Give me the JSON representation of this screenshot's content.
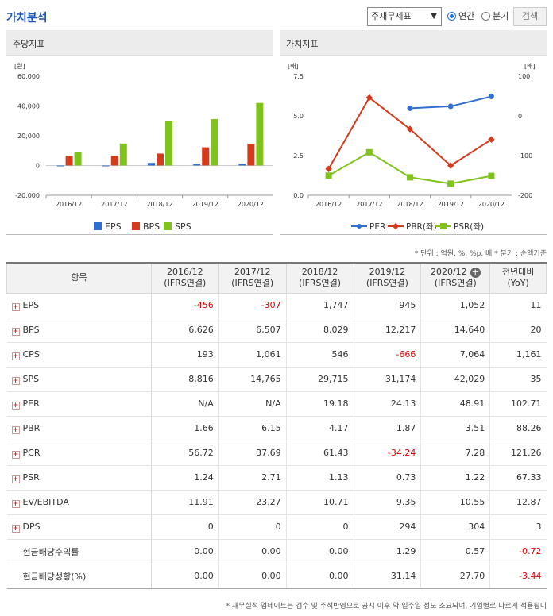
{
  "header": {
    "title": "가치분석",
    "report_type": "주재무제표",
    "period_options": [
      "연간",
      "분기"
    ],
    "selected_period": "연간",
    "search_label": "검색"
  },
  "panels": {
    "left_title": "주당지표",
    "right_title": "가치지표"
  },
  "chart_data": [
    {
      "type": "bar",
      "categories": [
        "2016/12",
        "2017/12",
        "2018/12",
        "2019/12",
        "2020/12"
      ],
      "series": [
        {
          "name": "EPS",
          "color": "#2f6fcf",
          "values": [
            -456,
            -307,
            1747,
            945,
            1052
          ]
        },
        {
          "name": "BPS",
          "color": "#d23b1c",
          "values": [
            6626,
            6507,
            8029,
            12217,
            14640
          ]
        },
        {
          "name": "SPS",
          "color": "#7fc31c",
          "values": [
            8816,
            14765,
            29715,
            31174,
            42029
          ]
        }
      ],
      "ylabel": "[원]",
      "ylim": [
        -20000,
        60000
      ],
      "yticks": [
        "60,000",
        "40,000",
        "20,000",
        "0",
        "-20,000"
      ],
      "legend": "bottom"
    },
    {
      "type": "line",
      "categories": [
        "2016/12",
        "2017/12",
        "2018/12",
        "2019/12",
        "2020/12"
      ],
      "series": [
        {
          "name": "PER",
          "axis": "right",
          "color": "#2f6fcf",
          "values": [
            null,
            null,
            19.18,
            24.13,
            48.91
          ]
        },
        {
          "name": "PBR(좌)",
          "axis": "left",
          "color": "#d23b1c",
          "values": [
            1.66,
            6.15,
            4.17,
            1.87,
            3.51
          ]
        },
        {
          "name": "PSR(좌)",
          "axis": "left",
          "color": "#7fc31c",
          "values": [
            1.24,
            2.71,
            1.13,
            0.73,
            1.22
          ]
        }
      ],
      "ylabel_left": "[배]",
      "ylabel_right": "[배]",
      "ylim_left": [
        0,
        7.5
      ],
      "ylim_right": [
        -200,
        100
      ],
      "yticks_left": [
        "7.5",
        "5.0",
        "2.5",
        "0.0"
      ],
      "yticks_right": [
        "100",
        "0",
        "-100",
        "-200"
      ],
      "legend": "bottom"
    }
  ],
  "units_note": "* 단위 : 억원, %, %p, 배    * 분기 : 순액기준",
  "table": {
    "headers": [
      {
        "line1": "항목",
        "line2": ""
      },
      {
        "line1": "2016/12",
        "line2": "(IFRS연결)"
      },
      {
        "line1": "2017/12",
        "line2": "(IFRS연결)"
      },
      {
        "line1": "2018/12",
        "line2": "(IFRS연결)"
      },
      {
        "line1": "2019/12",
        "line2": "(IFRS연결)"
      },
      {
        "line1": "2020/12",
        "line2": "(IFRS연결)"
      },
      {
        "line1": "전년대비",
        "line2": "(YoY)"
      }
    ],
    "rows": [
      {
        "label": "EPS",
        "expand": true,
        "values": [
          "-456",
          "-307",
          "1,747",
          "945",
          "1,052",
          "11"
        ]
      },
      {
        "label": "BPS",
        "expand": true,
        "values": [
          "6,626",
          "6,507",
          "8,029",
          "12,217",
          "14,640",
          "20"
        ]
      },
      {
        "label": "CPS",
        "expand": true,
        "values": [
          "193",
          "1,061",
          "546",
          "-666",
          "7,064",
          "1,161"
        ]
      },
      {
        "label": "SPS",
        "expand": true,
        "values": [
          "8,816",
          "14,765",
          "29,715",
          "31,174",
          "42,029",
          "35"
        ]
      },
      {
        "label": "PER",
        "expand": true,
        "values": [
          "N/A",
          "N/A",
          "19.18",
          "24.13",
          "48.91",
          "102.71"
        ]
      },
      {
        "label": "PBR",
        "expand": true,
        "values": [
          "1.66",
          "6.15",
          "4.17",
          "1.87",
          "3.51",
          "88.26"
        ]
      },
      {
        "label": "PCR",
        "expand": true,
        "values": [
          "56.72",
          "37.69",
          "61.43",
          "-34.24",
          "7.28",
          "121.26"
        ]
      },
      {
        "label": "PSR",
        "expand": true,
        "values": [
          "1.24",
          "2.71",
          "1.13",
          "0.73",
          "1.22",
          "67.33"
        ]
      },
      {
        "label": "EV/EBITDA",
        "expand": true,
        "values": [
          "11.91",
          "23.27",
          "10.71",
          "9.35",
          "10.55",
          "12.87"
        ]
      },
      {
        "label": "DPS",
        "expand": true,
        "values": [
          "0",
          "0",
          "0",
          "294",
          "304",
          "3"
        ]
      },
      {
        "label": "현금배당수익률",
        "expand": false,
        "values": [
          "0.00",
          "0.00",
          "0.00",
          "1.29",
          "0.57",
          "-0.72"
        ]
      },
      {
        "label": "현금배당성향(%)",
        "expand": false,
        "values": [
          "0.00",
          "0.00",
          "0.00",
          "31.14",
          "27.70",
          "-3.44"
        ]
      }
    ]
  },
  "footnote": "* 재무실적 업데이트는 검수 및 주석반영으로 공시 이후 약 일주일 정도 소요되며, 기업별로 다르게 적용됩니"
}
